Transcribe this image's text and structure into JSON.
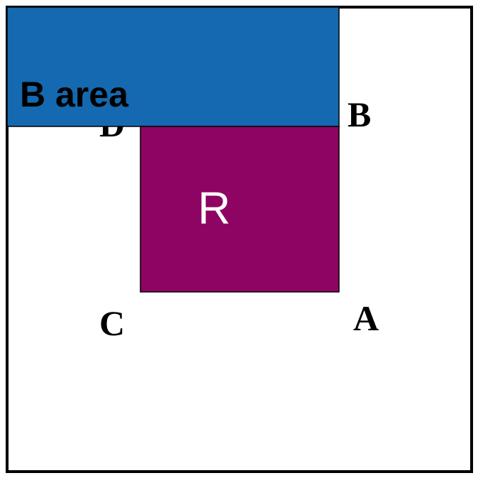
{
  "diagram": {
    "region_b": {
      "label": "B area",
      "fill": "#1469B0"
    },
    "region_r": {
      "label": "R",
      "fill": "#8E0463"
    },
    "points": {
      "a": "A",
      "b": "B",
      "c": "C",
      "d": "D"
    },
    "colors": {
      "outline": "#000000",
      "label_text": "#000000",
      "r_label_text": "#ffffff",
      "background": "#ffffff"
    }
  }
}
